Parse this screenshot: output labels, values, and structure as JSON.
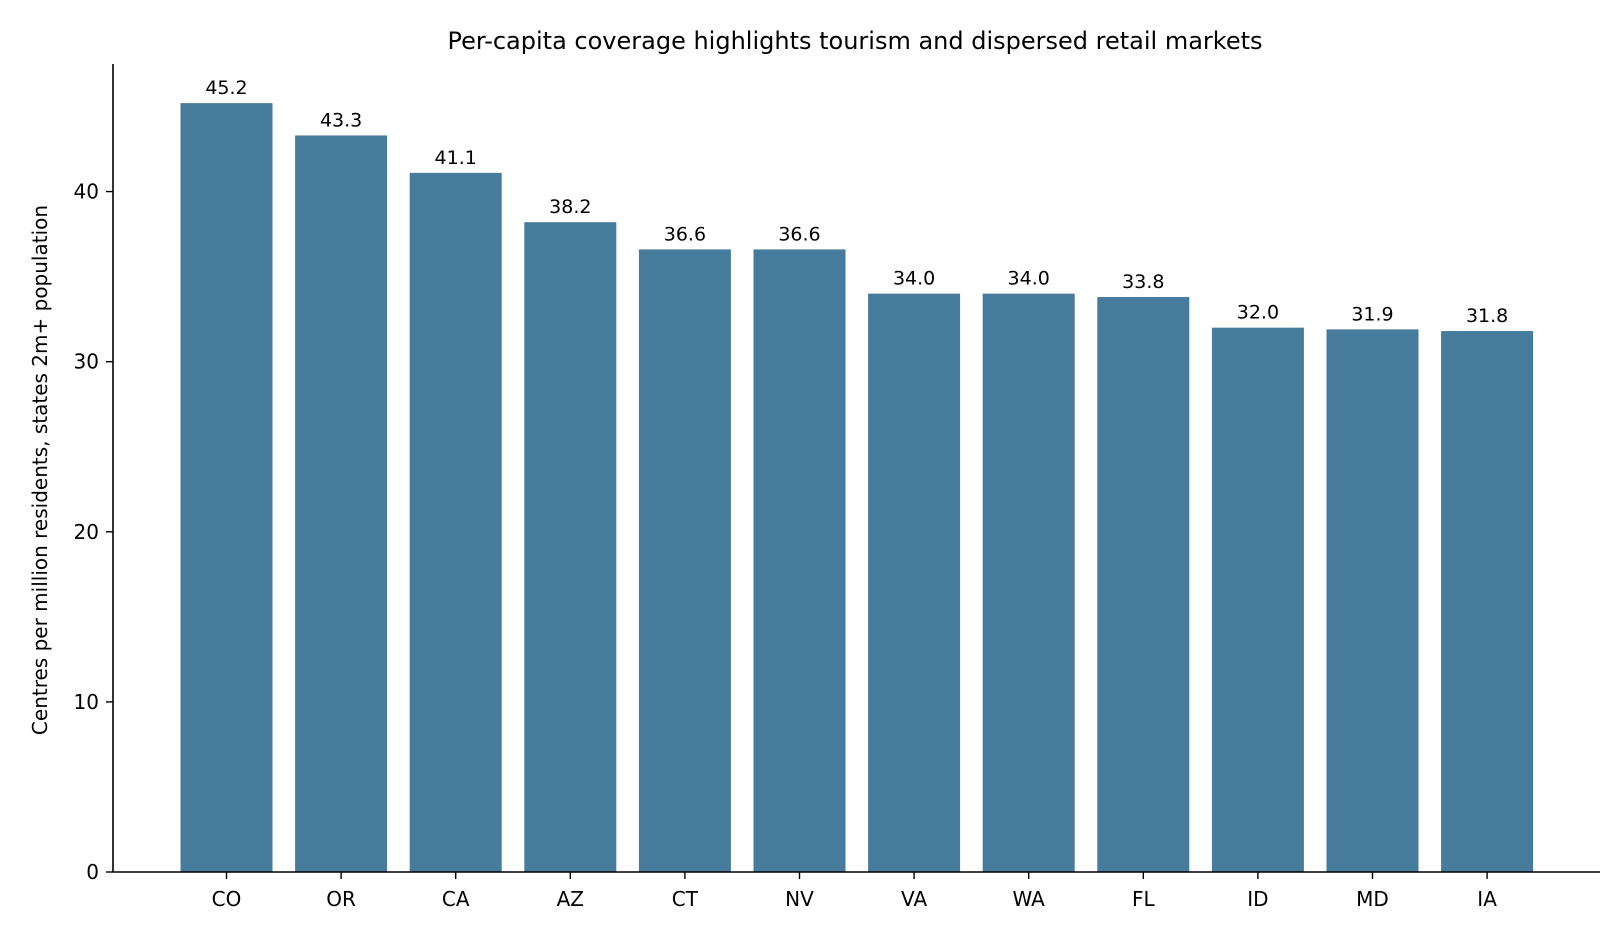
{
  "chart_data": {
    "type": "bar",
    "title": "Per-capita coverage highlights tourism and dispersed retail markets",
    "xlabel": "",
    "ylabel": "Centres per million residents, states 2m+ population",
    "categories": [
      "CO",
      "OR",
      "CA",
      "AZ",
      "CT",
      "NV",
      "VA",
      "WA",
      "FL",
      "ID",
      "MD",
      "IA"
    ],
    "values": [
      45.2,
      43.3,
      41.1,
      38.2,
      36.6,
      36.6,
      34.0,
      34.0,
      33.8,
      32.0,
      31.9,
      31.8
    ],
    "value_labels": [
      "45.2",
      "43.3",
      "41.1",
      "38.2",
      "36.6",
      "36.6",
      "34.0",
      "34.0",
      "33.8",
      "32.0",
      "31.9",
      "31.8"
    ],
    "yticks": [
      0,
      10,
      20,
      30,
      40
    ],
    "ytick_labels": [
      "0",
      "10",
      "20",
      "30",
      "40"
    ],
    "ylim": [
      0,
      47.5
    ],
    "grid": false,
    "legend": "none",
    "bar_color": "#467b9c"
  }
}
